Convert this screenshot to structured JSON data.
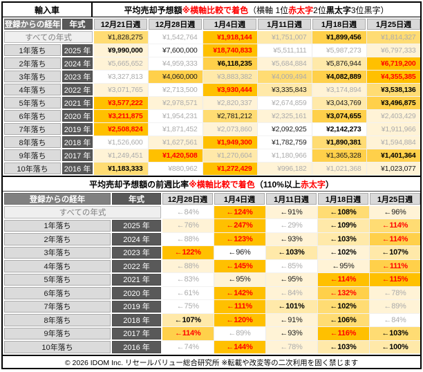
{
  "palette": {
    "W": "#FFFFFF",
    "C1": "#FFF3D6",
    "C2": "#FFE9A9",
    "C3": "#FFDC73",
    "C4": "#FFD04A",
    "C5": "#FFC000"
  },
  "text_colors": {
    "gray": "#ABABAB",
    "black": "#1A1A1A",
    "red": "#FF0000",
    "accent": "#FFC000"
  },
  "table1": {
    "corner_label": "輸入車",
    "title_segments": [
      {
        "t": "平均売却予想額 ",
        "style": "bold"
      },
      {
        "t": "※横軸比較で着色",
        "style": "redbold"
      },
      {
        "t": "（横軸 1位",
        "style": "plain"
      },
      {
        "t": "赤太字",
        "style": "redbold"
      },
      {
        "t": " 2位",
        "style": "plain"
      },
      {
        "t": "黒太字",
        "style": "bold"
      },
      {
        "t": " 3位黒字）",
        "style": "plain"
      }
    ],
    "headers": {
      "age": "登録からの経年",
      "year": "年式",
      "weeks": [
        "12月21日週",
        "12月28日週",
        "1月4日週",
        "1月11日週",
        "1月18日週",
        "1月25日週"
      ]
    },
    "all_years": {
      "label": "すべての年式",
      "cells": [
        {
          "v": "¥1,828,275",
          "bg": "C3",
          "s": "plain"
        },
        {
          "v": "¥1,542,764",
          "bg": "W",
          "s": "gray"
        },
        {
          "v": "¥1,918,144",
          "bg": "C5",
          "s": "red"
        },
        {
          "v": "¥1,751,007",
          "bg": "C2",
          "s": "gray"
        },
        {
          "v": "¥1,899,456",
          "bg": "C4",
          "s": "bold"
        },
        {
          "v": "¥1,814,327",
          "bg": "C3",
          "s": "gray"
        }
      ]
    },
    "rows": [
      {
        "label": "1年落ち",
        "year": "2025 年",
        "cells": [
          {
            "v": "¥9,990,000",
            "bg": "C1",
            "s": "bold"
          },
          {
            "v": "¥7,600,000",
            "bg": "W",
            "s": "plain"
          },
          {
            "v": "¥18,740,833",
            "bg": "C5",
            "s": "red"
          },
          {
            "v": "¥5,511,111",
            "bg": "W",
            "s": "gray"
          },
          {
            "v": "¥5,987,273",
            "bg": "W",
            "s": "gray"
          },
          {
            "v": "¥6,797,333",
            "bg": "C1",
            "s": "gray"
          }
        ]
      },
      {
        "label": "2年落ち",
        "year": "2024 年",
        "cells": [
          {
            "v": "¥5,665,652",
            "bg": "C1",
            "s": "gray"
          },
          {
            "v": "¥4,959,333",
            "bg": "W",
            "s": "gray"
          },
          {
            "v": "¥6,118,235",
            "bg": "C4",
            "s": "bold"
          },
          {
            "v": "¥5,684,884",
            "bg": "C1",
            "s": "gray"
          },
          {
            "v": "¥5,876,944",
            "bg": "C2",
            "s": "plain"
          },
          {
            "v": "¥6,719,200",
            "bg": "C5",
            "s": "red"
          }
        ]
      },
      {
        "label": "3年落ち",
        "year": "2023 年",
        "cells": [
          {
            "v": "¥3,327,813",
            "bg": "W",
            "s": "gray"
          },
          {
            "v": "¥4,060,000",
            "bg": "C4",
            "s": "plain"
          },
          {
            "v": "¥3,883,382",
            "bg": "C2",
            "s": "gray"
          },
          {
            "v": "¥4,009,494",
            "bg": "C3",
            "s": "gray"
          },
          {
            "v": "¥4,082,889",
            "bg": "C4",
            "s": "bold"
          },
          {
            "v": "¥4,355,385",
            "bg": "C5",
            "s": "red"
          }
        ]
      },
      {
        "label": "4年落ち",
        "year": "2022 年",
        "cells": [
          {
            "v": "¥3,071,765",
            "bg": "C1",
            "s": "gray"
          },
          {
            "v": "¥2,713,500",
            "bg": "W",
            "s": "gray"
          },
          {
            "v": "¥3,930,444",
            "bg": "C5",
            "s": "red"
          },
          {
            "v": "¥3,335,843",
            "bg": "C2",
            "s": "plain"
          },
          {
            "v": "¥3,174,894",
            "bg": "C1",
            "s": "gray"
          },
          {
            "v": "¥3,538,136",
            "bg": "C3",
            "s": "bold"
          }
        ]
      },
      {
        "label": "5年落ち",
        "year": "2021 年",
        "cells": [
          {
            "v": "¥3,577,222",
            "bg": "C5",
            "s": "red"
          },
          {
            "v": "¥2,978,571",
            "bg": "C1",
            "s": "gray"
          },
          {
            "v": "¥2,820,337",
            "bg": "C1",
            "s": "gray"
          },
          {
            "v": "¥2,674,859",
            "bg": "W",
            "s": "gray"
          },
          {
            "v": "¥3,043,769",
            "bg": "C2",
            "s": "plain"
          },
          {
            "v": "¥3,496,875",
            "bg": "C4",
            "s": "bold"
          }
        ]
      },
      {
        "label": "6年落ち",
        "year": "2020 年",
        "cells": [
          {
            "v": "¥3,211,875",
            "bg": "C5",
            "s": "red"
          },
          {
            "v": "¥1,954,231",
            "bg": "W",
            "s": "gray"
          },
          {
            "v": "¥2,781,212",
            "bg": "C3",
            "s": "plain"
          },
          {
            "v": "¥2,325,161",
            "bg": "C1",
            "s": "gray"
          },
          {
            "v": "¥3,074,655",
            "bg": "C4",
            "s": "bold"
          },
          {
            "v": "¥2,403,429",
            "bg": "C1",
            "s": "gray"
          }
        ]
      },
      {
        "label": "7年落ち",
        "year": "2019 年",
        "cells": [
          {
            "v": "¥2,508,824",
            "bg": "C5",
            "s": "red"
          },
          {
            "v": "¥1,871,452",
            "bg": "W",
            "s": "gray"
          },
          {
            "v": "¥2,073,860",
            "bg": "C1",
            "s": "gray"
          },
          {
            "v": "¥2,092,925",
            "bg": "W",
            "s": "plain"
          },
          {
            "v": "¥2,142,273",
            "bg": "W",
            "s": "bold"
          },
          {
            "v": "¥1,911,966",
            "bg": "C1",
            "s": "gray"
          }
        ]
      },
      {
        "label": "8年落ち",
        "year": "2018 年",
        "cells": [
          {
            "v": "¥1,526,600",
            "bg": "W",
            "s": "gray"
          },
          {
            "v": "¥1,627,561",
            "bg": "C1",
            "s": "gray"
          },
          {
            "v": "¥1,949,300",
            "bg": "C5",
            "s": "red"
          },
          {
            "v": "¥1,782,759",
            "bg": "W",
            "s": "plain"
          },
          {
            "v": "¥1,890,381",
            "bg": "C3",
            "s": "bold"
          },
          {
            "v": "¥1,594,884",
            "bg": "C1",
            "s": "gray"
          }
        ]
      },
      {
        "label": "9年落ち",
        "year": "2017 年",
        "cells": [
          {
            "v": "¥1,249,451",
            "bg": "C1",
            "s": "gray"
          },
          {
            "v": "¥1,420,508",
            "bg": "C5",
            "s": "red"
          },
          {
            "v": "¥1,270,604",
            "bg": "C2",
            "s": "gray"
          },
          {
            "v": "¥1,180,966",
            "bg": "W",
            "s": "gray"
          },
          {
            "v": "¥1,365,328",
            "bg": "C4",
            "s": "plain"
          },
          {
            "v": "¥1,401,364",
            "bg": "C4",
            "s": "bold"
          }
        ]
      },
      {
        "label": "10年落ち",
        "year": "2016 年",
        "cells": [
          {
            "v": "¥1,183,333",
            "bg": "C3",
            "s": "bold"
          },
          {
            "v": "¥880,962",
            "bg": "W",
            "s": "gray"
          },
          {
            "v": "¥1,272,429",
            "bg": "C5",
            "s": "red"
          },
          {
            "v": "¥996,182",
            "bg": "C1",
            "s": "gray"
          },
          {
            "v": "¥1,021,368",
            "bg": "C1",
            "s": "gray"
          },
          {
            "v": "¥1,023,077",
            "bg": "C1",
            "s": "plain"
          }
        ]
      }
    ]
  },
  "table2": {
    "title_segments": [
      {
        "t": "平均売却予想額の前週比率 ",
        "style": "bold"
      },
      {
        "t": "※横軸比較で着色",
        "style": "redbold"
      },
      {
        "t": "（110%以上 ",
        "style": "bold"
      },
      {
        "t": "赤太字",
        "style": "redbold"
      },
      {
        "t": "）",
        "style": "bold"
      }
    ],
    "headers": {
      "age": "登録からの経年",
      "year": "年式",
      "weeks": [
        "12月28日週",
        "1月4日週",
        "1月11日週",
        "1月18日週",
        "1月25日週"
      ]
    },
    "all_years": {
      "label": "すべての年式",
      "cells": [
        {
          "v": "←84%",
          "bg": "W",
          "s": "gray"
        },
        {
          "v": "←124%",
          "bg": "C5",
          "s": "red"
        },
        {
          "v": "←91%",
          "bg": "C1",
          "s": "plain"
        },
        {
          "v": "←108%",
          "bg": "C3",
          "s": "bold"
        },
        {
          "v": "←96%",
          "bg": "C1",
          "s": "plain"
        }
      ]
    },
    "rows": [
      {
        "label": "1年落ち",
        "year": "2025 年",
        "cells": [
          {
            "v": "←76%",
            "bg": "C1",
            "s": "gray"
          },
          {
            "v": "←247%",
            "bg": "C5",
            "s": "red"
          },
          {
            "v": "←29%",
            "bg": "W",
            "s": "gray"
          },
          {
            "v": "←109%",
            "bg": "C2",
            "s": "bold"
          },
          {
            "v": "←114%",
            "bg": "C3",
            "s": "red"
          }
        ]
      },
      {
        "label": "2年落ち",
        "year": "2024 年",
        "cells": [
          {
            "v": "←88%",
            "bg": "W",
            "s": "gray"
          },
          {
            "v": "←123%",
            "bg": "C5",
            "s": "red"
          },
          {
            "v": "←93%",
            "bg": "C1",
            "s": "plain"
          },
          {
            "v": "←103%",
            "bg": "C2",
            "s": "bold"
          },
          {
            "v": "←114%",
            "bg": "C4",
            "s": "red"
          }
        ]
      },
      {
        "label": "3年落ち",
        "year": "2023 年",
        "cells": [
          {
            "v": "←122%",
            "bg": "C5",
            "s": "red"
          },
          {
            "v": "←96%",
            "bg": "W",
            "s": "plain"
          },
          {
            "v": "←103%",
            "bg": "C2",
            "s": "bold"
          },
          {
            "v": "←102%",
            "bg": "C1",
            "s": "bold"
          },
          {
            "v": "←107%",
            "bg": "C2",
            "s": "bold"
          }
        ]
      },
      {
        "label": "4年落ち",
        "year": "2022 年",
        "cells": [
          {
            "v": "←88%",
            "bg": "C1",
            "s": "gray"
          },
          {
            "v": "←145%",
            "bg": "C5",
            "s": "red"
          },
          {
            "v": "←85%",
            "bg": "W",
            "s": "gray"
          },
          {
            "v": "←95%",
            "bg": "C1",
            "s": "plain"
          },
          {
            "v": "←111%",
            "bg": "C4",
            "s": "red"
          }
        ]
      },
      {
        "label": "5年落ち",
        "year": "2021 年",
        "cells": [
          {
            "v": "←83%",
            "bg": "W",
            "s": "gray"
          },
          {
            "v": "←95%",
            "bg": "C1",
            "s": "plain"
          },
          {
            "v": "←95%",
            "bg": "C1",
            "s": "plain"
          },
          {
            "v": "←114%",
            "bg": "C5",
            "s": "red"
          },
          {
            "v": "←115%",
            "bg": "C5",
            "s": "red"
          }
        ]
      },
      {
        "label": "6年落ち",
        "year": "2020 年",
        "cells": [
          {
            "v": "←61%",
            "bg": "W",
            "s": "gray"
          },
          {
            "v": "←142%",
            "bg": "C5",
            "s": "red"
          },
          {
            "v": "←84%",
            "bg": "C1",
            "s": "gray"
          },
          {
            "v": "←132%",
            "bg": "C4",
            "s": "red"
          },
          {
            "v": "←78%",
            "bg": "C1",
            "s": "gray"
          }
        ]
      },
      {
        "label": "7年落ち",
        "year": "2019 年",
        "cells": [
          {
            "v": "←75%",
            "bg": "W",
            "s": "gray"
          },
          {
            "v": "←111%",
            "bg": "C5",
            "s": "red"
          },
          {
            "v": "←101%",
            "bg": "C2",
            "s": "bold"
          },
          {
            "v": "←102%",
            "bg": "C3",
            "s": "bold"
          },
          {
            "v": "←89%",
            "bg": "C1",
            "s": "gray"
          }
        ]
      },
      {
        "label": "8年落ち",
        "year": "2018 年",
        "cells": [
          {
            "v": "←107%",
            "bg": "C2",
            "s": "bold"
          },
          {
            "v": "←120%",
            "bg": "C5",
            "s": "red"
          },
          {
            "v": "←91%",
            "bg": "C1",
            "s": "plain"
          },
          {
            "v": "←106%",
            "bg": "C3",
            "s": "bold"
          },
          {
            "v": "←84%",
            "bg": "W",
            "s": "gray"
          }
        ]
      },
      {
        "label": "9年落ち",
        "year": "2017 年",
        "cells": [
          {
            "v": "←114%",
            "bg": "C4",
            "s": "red"
          },
          {
            "v": "←89%",
            "bg": "W",
            "s": "gray"
          },
          {
            "v": "←93%",
            "bg": "C1",
            "s": "plain"
          },
          {
            "v": "←116%",
            "bg": "C5",
            "s": "red"
          },
          {
            "v": "←103%",
            "bg": "C3",
            "s": "bold"
          }
        ]
      },
      {
        "label": "10年落ち",
        "year": "2016 年",
        "cells": [
          {
            "v": "←74%",
            "bg": "W",
            "s": "gray"
          },
          {
            "v": "←144%",
            "bg": "C5",
            "s": "red"
          },
          {
            "v": "←78%",
            "bg": "C1",
            "s": "gray"
          },
          {
            "v": "←103%",
            "bg": "C2",
            "s": "bold"
          },
          {
            "v": "←100%",
            "bg": "C2",
            "s": "bold"
          }
        ]
      }
    ]
  },
  "footer": "© 2026 IDOM Inc. リセールバリュー総合研究所 ※転載や改変等の二次利用を固く禁じます"
}
